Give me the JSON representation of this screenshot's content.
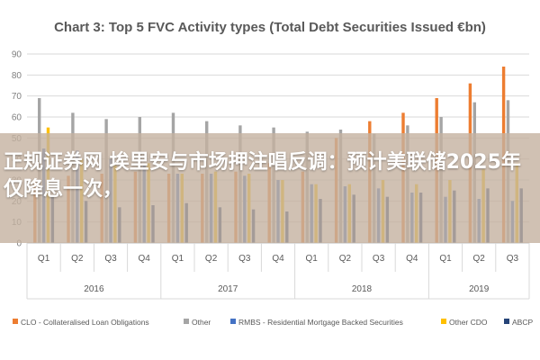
{
  "chart_data": {
    "type": "bar",
    "title": "Chart 3: Top 5 FVC Activity types (Total Debt Securities Issued €bn)",
    "ylim": [
      0,
      90
    ],
    "yticks": [
      0,
      10,
      20,
      30,
      40,
      50,
      60,
      70,
      80,
      90
    ],
    "grid": true,
    "legend_position": "bottom",
    "categories": [
      "Q1",
      "Q2",
      "Q3",
      "Q4",
      "Q1",
      "Q2",
      "Q3",
      "Q4",
      "Q1",
      "Q2",
      "Q3",
      "Q4",
      "Q1",
      "Q2",
      "Q3"
    ],
    "years": [
      {
        "label": "2016",
        "count": 4
      },
      {
        "label": "2017",
        "count": 4
      },
      {
        "label": "2018",
        "count": 4
      },
      {
        "label": "2019",
        "count": 3
      }
    ],
    "series": [
      {
        "name": "CLO - Collateralised Loan Obligations",
        "color": "#ED7D31",
        "values": [
          30,
          32,
          33,
          34,
          33,
          33,
          34,
          38,
          34,
          50,
          58,
          62,
          69,
          76,
          84
        ]
      },
      {
        "name": "Other",
        "color": "#A5A5A5",
        "values": [
          69,
          62,
          59,
          60,
          62,
          58,
          56,
          55,
          53,
          54,
          52,
          56,
          60,
          67,
          68
        ]
      },
      {
        "name": "RMBS - Residential Mortgage Backed Securities",
        "color": "#4472C4",
        "values": [
          45,
          44,
          40,
          37,
          33,
          33,
          32,
          30,
          28,
          27,
          26,
          24,
          22,
          21,
          20
        ]
      },
      {
        "name": "Other CDO",
        "color": "#FFC000",
        "values": [
          55,
          40,
          37,
          38,
          33,
          34,
          33,
          30,
          28,
          28,
          30,
          28,
          30,
          35,
          38
        ]
      },
      {
        "name": "ABCP",
        "color": "#264478",
        "values": [
          22,
          20,
          17,
          18,
          19,
          17,
          16,
          15,
          21,
          23,
          22,
          24,
          25,
          26,
          26
        ]
      }
    ]
  },
  "overlay": {
    "text": "正规证券网 埃里安与市场押注唱反调：预计美联储2025年仅降息一次，"
  }
}
